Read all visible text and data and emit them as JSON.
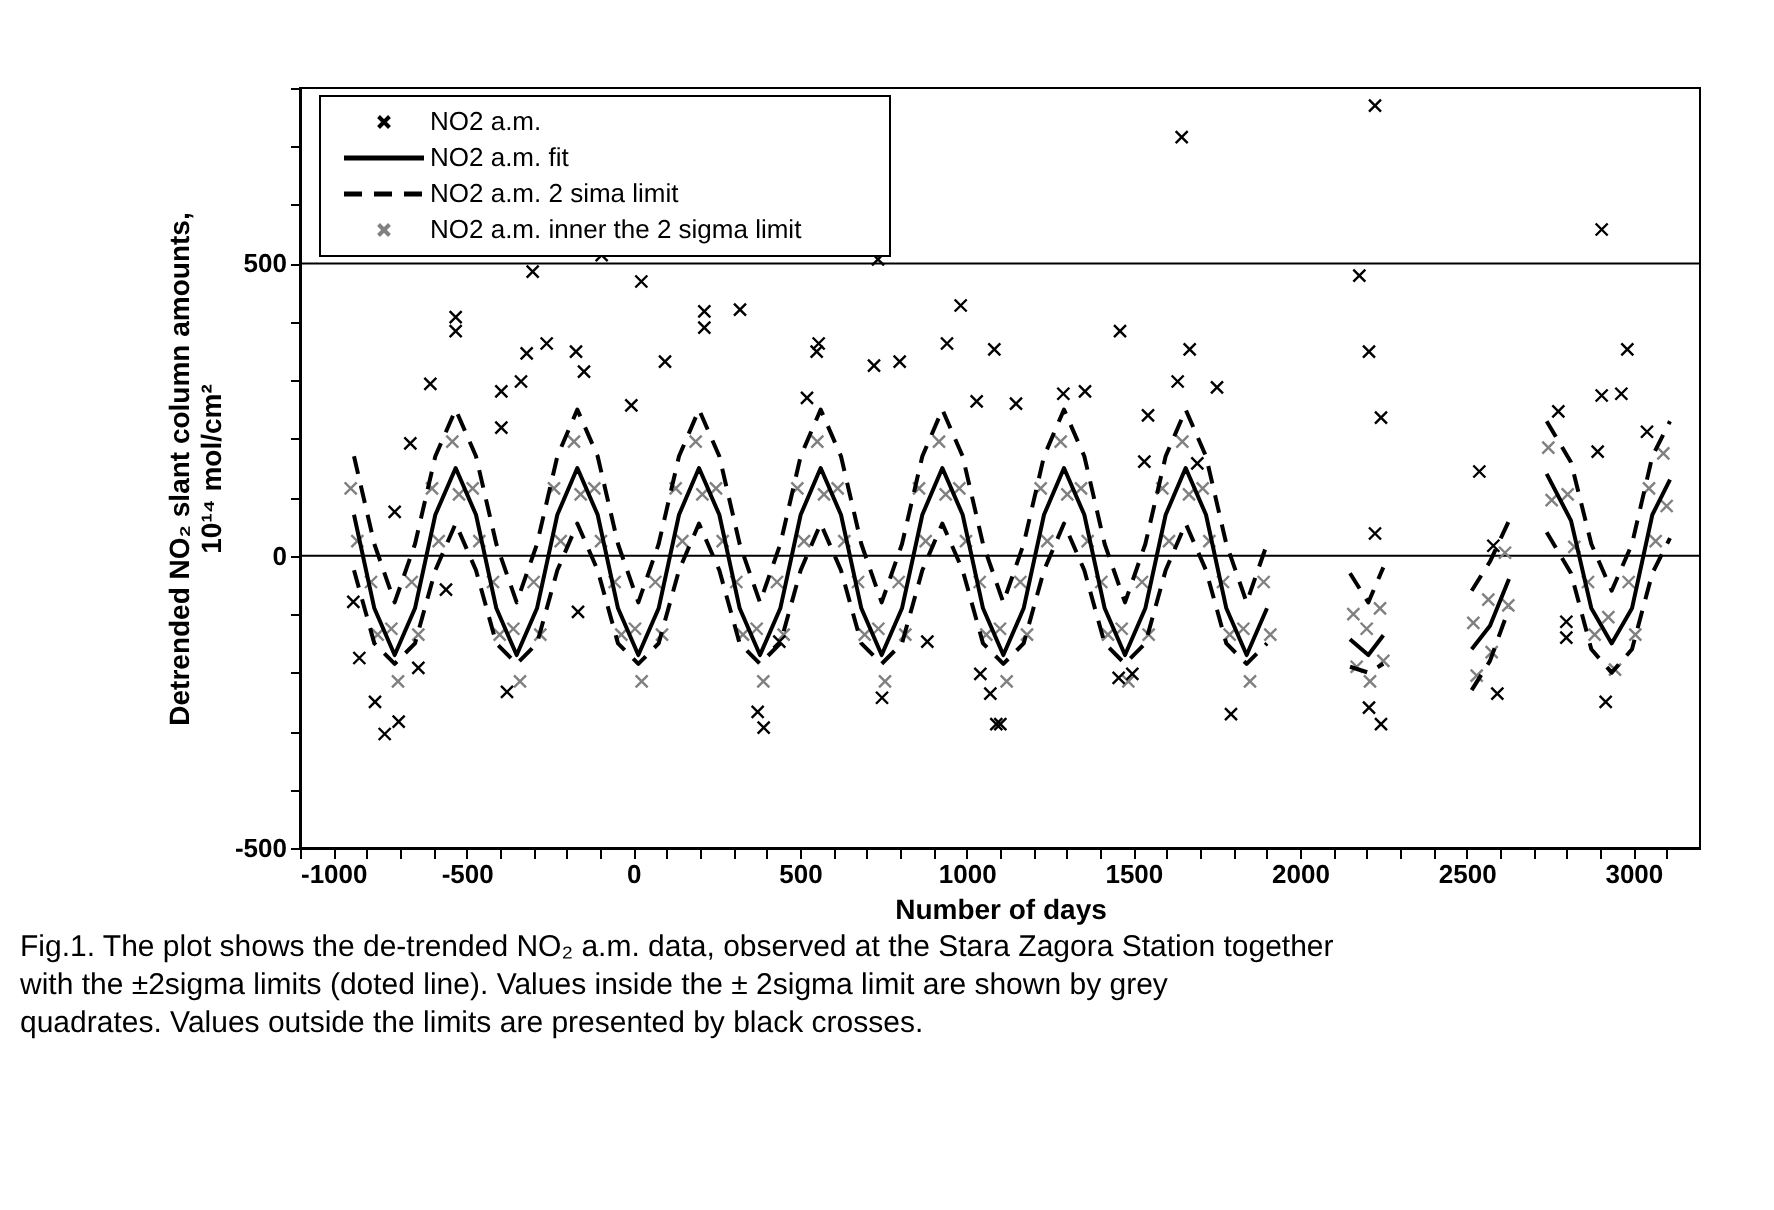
{
  "chart_data": {
    "type": "scatter",
    "xlabel": "Number of days",
    "ylabel": "Detrended NO₂ slant column amounts, 10¹⁴ mol/cm²",
    "xlim": [
      -1000,
      3200
    ],
    "xticks": [
      -1000,
      {
        "value": -900,
        "label": null
      },
      {
        "value": -800,
        "label": null
      },
      {
        "value": -700,
        "label": null
      },
      {
        "value": -600,
        "label": null
      },
      -500,
      {
        "value": -400,
        "label": null
      },
      {
        "value": -300,
        "label": null
      },
      {
        "value": -200,
        "label": null
      },
      {
        "value": -100,
        "label": null
      },
      0,
      {
        "value": 100,
        "label": null
      },
      {
        "value": 200,
        "label": null
      },
      {
        "value": 300,
        "label": null
      },
      {
        "value": 400,
        "label": null
      },
      500,
      {
        "value": 600,
        "label": null
      },
      {
        "value": 700,
        "label": null
      },
      {
        "value": 800,
        "label": null
      },
      {
        "value": 900,
        "label": null
      },
      1000,
      {
        "value": 1100,
        "label": null
      },
      {
        "value": 1200,
        "label": null
      },
      {
        "value": 1300,
        "label": null
      },
      {
        "value": 1400,
        "label": null
      },
      1500,
      {
        "value": 1600,
        "label": null
      },
      {
        "value": 1700,
        "label": null
      },
      {
        "value": 1800,
        "label": null
      },
      {
        "value": 1900,
        "label": null
      },
      2000,
      {
        "value": 2100,
        "label": null
      },
      {
        "value": 2200,
        "label": null
      },
      {
        "value": 2300,
        "label": null
      },
      {
        "value": 2400,
        "label": null
      },
      2500,
      {
        "value": 2600,
        "label": null
      },
      {
        "value": 2700,
        "label": null
      },
      {
        "value": 2800,
        "label": null
      },
      {
        "value": 2900,
        "label": null
      },
      3000,
      {
        "value": 3100,
        "label": null
      }
    ],
    "ylim": [
      -500,
      800
    ],
    "yticks": [
      -500,
      {
        "value": -400,
        "label": null
      },
      {
        "value": -300,
        "label": null
      },
      {
        "value": -200,
        "label": null
      },
      {
        "value": -100,
        "label": null
      },
      0,
      {
        "value": 100,
        "label": null
      },
      {
        "value": 200,
        "label": null
      },
      {
        "value": 300,
        "label": null
      },
      {
        "value": 400,
        "label": null
      },
      500,
      {
        "value": 600,
        "label": null
      },
      {
        "value": 700,
        "label": null
      },
      {
        "value": 800,
        "label": null
      }
    ],
    "ref_lines": [
      {
        "axis": "y",
        "value": 0,
        "color": "#000000"
      },
      {
        "axis": "y",
        "value": 500,
        "color": "#000000"
      }
    ],
    "legend": "top left",
    "annotations": [
      "Fig.1. The plot shows the de-trended NO₂ a.m. data, observed at the Stara Zagora Station together with the ±2sigma limits (doted line). Values inside the ± 2sigma limit are shown by grey quadrates. Values outside the limits are presented by black crosses."
    ],
    "series": [
      {
        "name": "NO2 a.m.",
        "marker": "cross",
        "color": "#000000",
        "x": [
          1645,
          2225,
          2905,
          2178,
          1460,
          1083,
          1669,
          2207,
          2982,
          -302,
          -95,
          24,
          734,
          -533,
          -533,
          -260,
          -320,
          -172,
          213,
          213,
          320,
          556,
          982,
          941,
          -609,
          -396,
          -337,
          -148,
          -6,
          95,
          550,
          722,
          799,
          521,
          1030,
          -669,
          -396,
          -716,
          -562,
          -166,
          438,
          882,
          -746,
          -704,
          -775,
          -822,
          -645,
          -379,
          391,
          373,
          746,
          1101,
          1071,
          1041,
          -840,
          1290,
          1355,
          1633,
          1751,
          1544,
          1148,
          2243,
          2538,
          2580,
          2775,
          2905,
          2964,
          3041,
          2893,
          2917,
          2799,
          2799,
          1793,
          2243,
          2207,
          1089,
          2592,
          1497,
          1456,
          2225,
          1692,
          1533
        ],
        "values": [
          716,
          770,
          558,
          479,
          384,
          353,
          353,
          349,
          353,
          486,
          514,
          469,
          507,
          408,
          384,
          363,
          346,
          349,
          418,
          390,
          421,
          363,
          428,
          363,
          294,
          281,
          298,
          315,
          257,
          332,
          349,
          325,
          332,
          270,
          264,
          192,
          219,
          75,
          -58,
          -96,
          -147,
          -147,
          -305,
          -284,
          -250,
          -175,
          -192,
          -233,
          -294,
          -267,
          -243,
          -288,
          -236,
          -202,
          -79,
          277,
          281,
          298,
          288,
          240,
          260,
          236,
          144,
          17,
          247,
          274,
          277,
          212,
          178,
          -250,
          -113,
          -140,
          -271,
          -288,
          -260,
          -288,
          -236,
          -202,
          -209,
          38,
          158,
          161
        ]
      },
      {
        "name": "NO2 a.m. fit",
        "type": "line",
        "line_style": "solid",
        "color": "#000000",
        "x": [
          -838,
          -777,
          -716,
          -655,
          -594,
          -533,
          -472,
          -411,
          -350,
          -289,
          -228,
          -168,
          -107,
          -46,
          15,
          76,
          137,
          197,
          258,
          319,
          380,
          441,
          502,
          562,
          623,
          684,
          745,
          806,
          867,
          927,
          988,
          1049,
          1110,
          1171,
          1232,
          1292,
          1353,
          1414,
          1475,
          1536,
          1597,
          1657,
          1718,
          1779,
          1840,
          1901,
          2000,
          2150,
          2205,
          2250,
          2400,
          2515,
          2570,
          2627,
          2680,
          2740,
          2813,
          2874,
          2935,
          2996,
          3057,
          3110
        ],
        "values": [
          70,
          -90,
          -170,
          -90,
          70,
          150,
          70,
          -90,
          -170,
          -90,
          70,
          150,
          70,
          -90,
          -170,
          -90,
          70,
          150,
          70,
          -90,
          -170,
          -90,
          70,
          150,
          70,
          -90,
          -170,
          -90,
          70,
          150,
          70,
          -90,
          -170,
          -90,
          70,
          150,
          70,
          -90,
          -170,
          -90,
          70,
          150,
          70,
          -90,
          -170,
          -90,
          null,
          -143,
          -170,
          -136,
          null,
          -160,
          -120,
          -40,
          null,
          140,
          60,
          -90,
          -150,
          -90,
          70,
          130
        ]
      },
      {
        "name": "NO2 a.m. 2 sima limit",
        "type": "line",
        "line_style": "dashed",
        "color": "#000000",
        "x": [
          -838,
          -777,
          -716,
          -655,
          -594,
          -533,
          -472,
          -411,
          -350,
          -289,
          -228,
          -168,
          -107,
          -46,
          15,
          76,
          137,
          197,
          258,
          319,
          380,
          441,
          502,
          562,
          623,
          684,
          745,
          806,
          867,
          927,
          988,
          1049,
          1110,
          1171,
          1232,
          1292,
          1353,
          1414,
          1475,
          1536,
          1597,
          1657,
          1718,
          1779,
          1840,
          1901,
          2000,
          2150,
          2205,
          2250,
          2400,
          2515,
          2570,
          2627,
          2680,
          2740,
          2813,
          2874,
          2935,
          2996,
          3057,
          3110
        ],
        "values": [
          170,
          20,
          -80,
          20,
          170,
          250,
          170,
          20,
          -80,
          20,
          170,
          250,
          170,
          20,
          -80,
          20,
          170,
          250,
          170,
          20,
          -80,
          20,
          170,
          250,
          170,
          20,
          -80,
          20,
          170,
          250,
          170,
          20,
          -80,
          20,
          170,
          250,
          170,
          20,
          -80,
          20,
          170,
          250,
          170,
          20,
          -80,
          20,
          null,
          -30,
          -80,
          -20,
          null,
          -60,
          -10,
          60,
          null,
          230,
          160,
          20,
          -60,
          20,
          170,
          230
        ]
      },
      {
        "type": "line",
        "line_style": "dashed",
        "color": "#000000",
        "x": [
          -838,
          -777,
          -716,
          -655,
          -594,
          -533,
          -472,
          -411,
          -350,
          -289,
          -228,
          -168,
          -107,
          -46,
          15,
          76,
          137,
          197,
          258,
          319,
          380,
          441,
          502,
          562,
          623,
          684,
          745,
          806,
          867,
          927,
          988,
          1049,
          1110,
          1171,
          1232,
          1292,
          1353,
          1414,
          1475,
          1536,
          1597,
          1657,
          1718,
          1779,
          1840,
          1901,
          2000,
          2150,
          2205,
          2250,
          2400,
          2515,
          2570,
          2627,
          2680,
          2740,
          2813,
          2874,
          2935,
          2996,
          3057,
          3110
        ],
        "values": [
          -25,
          -150,
          -185,
          -150,
          -25,
          55,
          -25,
          -150,
          -185,
          -150,
          -25,
          55,
          -25,
          -150,
          -185,
          -150,
          -25,
          55,
          -25,
          -150,
          -185,
          -150,
          -25,
          55,
          -25,
          -150,
          -185,
          -150,
          -25,
          55,
          -25,
          -150,
          -185,
          -150,
          -25,
          55,
          -25,
          -150,
          -185,
          -150,
          -25,
          55,
          -25,
          -150,
          -185,
          -150,
          null,
          -190,
          -200,
          -185,
          null,
          -230,
          -180,
          -90,
          null,
          40,
          -30,
          -160,
          -200,
          -160,
          -30,
          30
        ]
      },
      {
        "name": "NO2 a.m. inner the 2 sigma limit",
        "marker": "cross",
        "color": "#808080",
        "x": [
          -848,
          -828,
          -787,
          -767,
          -726,
          -706,
          -665,
          -645,
          -604,
          -584,
          -543,
          -523,
          -482,
          -462,
          -421,
          -401,
          -360,
          -340,
          -299,
          -279,
          -238,
          -218,
          -178,
          -158,
          -117,
          -97,
          -56,
          -36,
          5,
          25,
          66,
          86,
          127,
          147,
          187,
          207,
          248,
          268,
          309,
          329,
          370,
          390,
          431,
          451,
          492,
          512,
          552,
          572,
          613,
          633,
          674,
          694,
          735,
          755,
          796,
          816,
          857,
          877,
          917,
          937,
          978,
          998,
          1039,
          1059,
          1100,
          1120,
          1161,
          1181,
          1222,
          1242,
          1282,
          1302,
          1343,
          1363,
          1404,
          1424,
          1465,
          1485,
          1526,
          1546,
          1587,
          1607,
          1647,
          1667,
          1708,
          1728,
          1769,
          1789,
          1830,
          1850,
          1891,
          1911,
          2160,
          2170,
          2200,
          2210,
          2240,
          2250,
          2520,
          2530,
          2565,
          2575,
          2615,
          2625,
          2745,
          2755,
          2803,
          2823,
          2864,
          2884,
          2925,
          2945,
          2986,
          3006,
          3047,
          3067,
          3090,
          3100
        ],
        "values": [
          115,
          25,
          -45,
          -135,
          -125,
          -215,
          -45,
          -135,
          115,
          25,
          195,
          105,
          115,
          25,
          -45,
          -135,
          -125,
          -215,
          -45,
          -135,
          115,
          25,
          195,
          105,
          115,
          25,
          -45,
          -135,
          -125,
          -215,
          -45,
          -135,
          115,
          25,
          195,
          105,
          115,
          25,
          -45,
          -135,
          -125,
          -215,
          -45,
          -135,
          115,
          25,
          195,
          105,
          115,
          25,
          -45,
          -135,
          -125,
          -215,
          -45,
          -135,
          115,
          25,
          195,
          105,
          115,
          25,
          -45,
          -135,
          -125,
          -215,
          -45,
          -135,
          115,
          25,
          195,
          105,
          115,
          25,
          -45,
          -135,
          -125,
          -215,
          -45,
          -135,
          115,
          25,
          195,
          105,
          115,
          25,
          -45,
          -135,
          -125,
          -215,
          -45,
          -135,
          -100,
          -190,
          -125,
          -215,
          -90,
          -180,
          -115,
          -205,
          -75,
          -165,
          5,
          -85,
          185,
          95,
          105,
          15,
          -45,
          -135,
          -105,
          -195,
          -45,
          -135,
          115,
          25,
          175,
          85
        ]
      }
    ]
  }
}
